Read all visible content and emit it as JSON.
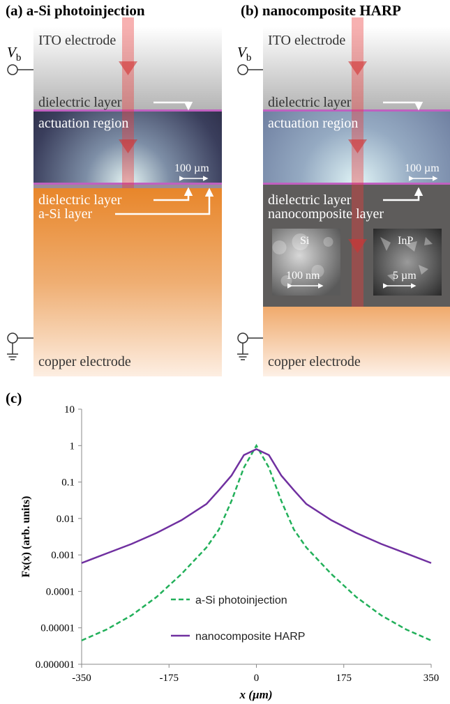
{
  "panel_a": {
    "label": "(a) a-Si photoinjection",
    "vb": "V",
    "vb_sub": "b",
    "ito": "ITO electrode",
    "dielectric_top": "dielectric layer",
    "actuation": "actuation region",
    "scale": "100 µm",
    "dielectric_bottom": "dielectric layer",
    "layer": "a-Si layer",
    "copper": "copper electrode"
  },
  "panel_b": {
    "label": "(b) nanocomposite HARP",
    "vb": "V",
    "vb_sub": "b",
    "ito": "ITO electrode",
    "dielectric_top": "dielectric layer",
    "actuation": "actuation region",
    "scale": "100 µm",
    "dielectric_bottom": "dielectric layer",
    "layer": "nanocomposite layer",
    "sem_si": "Si",
    "sem_si_scale": "100 nm",
    "sem_inp": "InP",
    "sem_inp_scale": "5 µm",
    "copper": "copper electrode"
  },
  "chart_data": {
    "type": "line",
    "panel_label": "(c)",
    "y_scale": "log",
    "x_label": "x (µm)",
    "y_label": "Fx(x) (arb. units)",
    "x": [
      -350,
      -300,
      -250,
      -200,
      -150,
      -100,
      -75,
      -50,
      -25,
      0,
      25,
      50,
      75,
      100,
      150,
      200,
      250,
      300,
      350
    ],
    "series": [
      {
        "name": "a-Si photoinjection",
        "color": "#22b05a",
        "dash": true,
        "values": [
          4.5e-06,
          9e-06,
          2.2e-05,
          7e-05,
          0.0003,
          0.0016,
          0.005,
          0.03,
          0.25,
          1,
          0.25,
          0.03,
          0.005,
          0.0016,
          0.0003,
          7e-05,
          2.2e-05,
          9e-06,
          4.5e-06
        ]
      },
      {
        "name": "nanocomposite HARP",
        "color": "#7030a0",
        "dash": false,
        "values": [
          0.0006,
          0.0011,
          0.002,
          0.004,
          0.009,
          0.025,
          0.06,
          0.15,
          0.55,
          0.8,
          0.55,
          0.15,
          0.06,
          0.025,
          0.009,
          0.004,
          0.002,
          0.0011,
          0.0006
        ]
      }
    ],
    "xlim": [
      -350,
      350
    ],
    "ylim": [
      1e-06,
      10
    ],
    "xticks": [
      -350,
      -175,
      0,
      175,
      350
    ],
    "yticks": [
      10,
      1,
      0.1,
      0.01,
      0.001,
      0.0001,
      1e-05,
      1e-06
    ]
  }
}
